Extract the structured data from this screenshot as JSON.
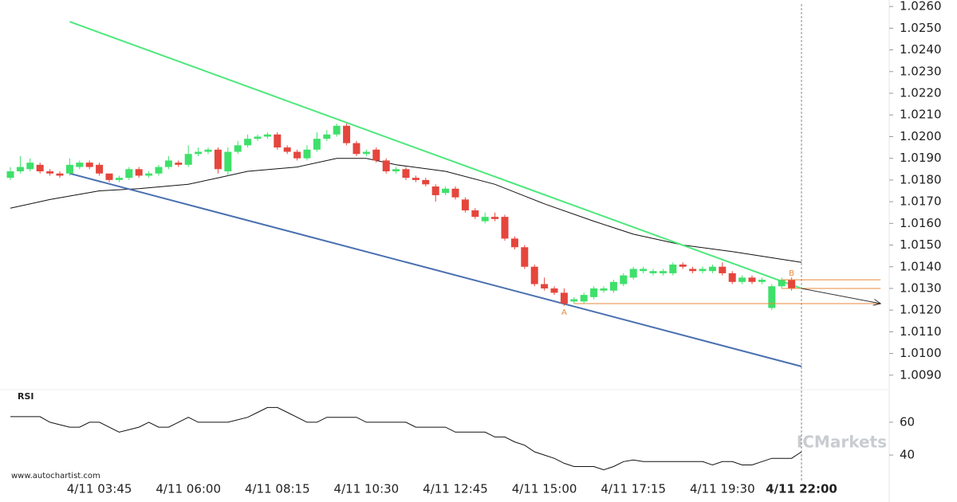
{
  "chart_data": {
    "type": "candlestick",
    "categories": [
      null,
      null,
      null,
      null,
      null,
      null,
      null,
      null,
      null,
      "4/11 03:45",
      null,
      null,
      null,
      null,
      null,
      null,
      null,
      null,
      "4/11 06:00",
      null,
      null,
      null,
      null,
      null,
      null,
      null,
      null,
      "4/11 08:15",
      null,
      null,
      null,
      null,
      null,
      null,
      null,
      null,
      "4/11 10:30",
      null,
      null,
      null,
      null,
      null,
      null,
      null,
      null,
      "4/11 12:45",
      null,
      null,
      null,
      null,
      null,
      null,
      null,
      null,
      "4/11 15:00",
      null,
      null,
      null,
      null,
      null,
      null,
      null,
      null,
      "4/11 17:15",
      null,
      null,
      null,
      null,
      null,
      null,
      null,
      null,
      "4/11 19:30",
      null,
      null,
      null,
      null,
      null,
      null,
      null,
      "4/11 22:00"
    ],
    "open": [
      1.0181,
      1.0184,
      1.0185,
      1.0187,
      1.0184,
      1.0183,
      1.0183,
      1.0186,
      1.0188,
      1.0187,
      1.0183,
      1.018,
      1.0181,
      1.0185,
      1.0182,
      1.0183,
      1.0186,
      1.0188,
      1.0187,
      1.0192,
      1.0193,
      1.0194,
      1.0184,
      1.0193,
      1.0196,
      1.0199,
      1.02,
      1.0201,
      1.0195,
      1.0193,
      1.019,
      1.0194,
      1.0199,
      1.0201,
      1.0205,
      1.0197,
      1.0192,
      1.0194,
      1.0189,
      1.0184,
      1.0185,
      1.0181,
      1.018,
      1.0177,
      1.0174,
      1.0176,
      1.0171,
      1.0166,
      1.0161,
      1.0163,
      1.0163,
      1.0153,
      1.0149,
      1.014,
      1.0132,
      1.013,
      1.0128,
      1.0124,
      1.0124,
      1.0126,
      1.0129,
      1.0129,
      1.0132,
      1.0135,
      1.0138,
      1.0137,
      1.0137,
      1.0137,
      1.0141,
      1.0139,
      1.0138,
      1.0138,
      1.014,
      1.0137,
      1.0133,
      1.0135,
      1.0133,
      1.0121,
      1.0131,
      1.0134,
      null
    ],
    "high": [
      1.0186,
      1.0191,
      1.019,
      1.0188,
      1.0185,
      1.0184,
      1.019,
      1.0189,
      1.0189,
      1.0188,
      1.0182,
      1.0182,
      1.0186,
      1.0186,
      1.0184,
      1.0187,
      1.0191,
      1.0189,
      1.0196,
      1.0195,
      1.0195,
      1.0195,
      1.0195,
      1.0198,
      1.0201,
      1.0201,
      1.0202,
      1.0202,
      1.0196,
      1.0194,
      1.0196,
      1.0202,
      1.0203,
      1.0206,
      1.0206,
      1.0198,
      1.0194,
      1.0195,
      1.019,
      1.0186,
      1.0186,
      1.0182,
      1.0181,
      1.0178,
      1.0177,
      1.0177,
      1.0172,
      1.0167,
      1.0165,
      1.0165,
      1.0164,
      1.0154,
      1.015,
      1.0141,
      1.0135,
      1.0131,
      1.013,
      1.0126,
      1.0128,
      1.0131,
      1.0131,
      1.0134,
      1.0137,
      1.014,
      1.014,
      1.0139,
      1.0139,
      1.0142,
      1.0142,
      1.014,
      1.014,
      1.0141,
      1.0142,
      1.0138,
      1.0136,
      1.0136,
      1.0135,
      1.0132,
      1.0135,
      1.0135,
      null
    ],
    "low": [
      1.018,
      1.0183,
      1.0184,
      1.0183,
      1.0182,
      1.0181,
      1.0182,
      1.0185,
      1.0185,
      1.0182,
      1.0179,
      1.0179,
      1.018,
      1.0181,
      1.0181,
      1.0182,
      1.0185,
      1.0186,
      1.0186,
      1.0191,
      1.0192,
      1.0183,
      1.0182,
      1.0192,
      1.0195,
      1.0198,
      1.0199,
      1.0194,
      1.0192,
      1.0189,
      1.0189,
      1.0193,
      1.0198,
      1.02,
      1.0196,
      1.0191,
      1.0191,
      1.0188,
      1.0183,
      1.0183,
      1.018,
      1.0179,
      1.0177,
      1.017,
      1.0173,
      1.0171,
      1.0165,
      1.0162,
      1.016,
      1.0161,
      1.0152,
      1.0148,
      1.0139,
      1.0131,
      1.0129,
      1.0127,
      1.0122,
      1.0123,
      1.0123,
      1.0125,
      1.0128,
      1.0128,
      1.0131,
      1.0134,
      1.0137,
      1.0136,
      1.0136,
      1.0136,
      1.0139,
      1.0137,
      1.0137,
      1.0137,
      1.0136,
      1.0132,
      1.0132,
      1.0132,
      1.0132,
      1.012,
      1.013,
      1.0129,
      null
    ],
    "close": [
      1.0184,
      1.0186,
      1.0188,
      1.0184,
      1.0183,
      1.0182,
      1.0187,
      1.0188,
      1.0186,
      1.0183,
      1.018,
      1.0181,
      1.0185,
      1.0182,
      1.0183,
      1.0186,
      1.0189,
      1.0187,
      1.0192,
      1.0193,
      1.0194,
      1.0185,
      1.0193,
      1.0196,
      1.0199,
      1.02,
      1.0201,
      1.0195,
      1.0193,
      1.019,
      1.0194,
      1.0199,
      1.0201,
      1.0205,
      1.0197,
      1.0192,
      1.0193,
      1.0189,
      1.0184,
      1.0185,
      1.0181,
      1.018,
      1.0178,
      1.0173,
      1.0176,
      1.0172,
      1.0166,
      1.0163,
      1.0163,
      1.0162,
      1.0153,
      1.0149,
      1.014,
      1.0132,
      1.013,
      1.0128,
      1.0123,
      1.0125,
      1.0127,
      1.013,
      1.013,
      1.0133,
      1.0136,
      1.0139,
      1.0139,
      1.0138,
      1.0138,
      1.0141,
      1.014,
      1.0138,
      1.0139,
      1.014,
      1.0137,
      1.0133,
      1.0135,
      1.0133,
      1.0134,
      1.0131,
      1.0134,
      1.013,
      null
    ],
    "up_color": "#3ee06a",
    "down_color": "#e5453c",
    "ylim": [
      1.0087,
      1.0263
    ],
    "yticks": [
      {
        "value": 1.026,
        "label": "1.0260"
      },
      {
        "value": 1.025,
        "label": "1.0250"
      },
      {
        "value": 1.024,
        "label": "1.0240"
      },
      {
        "value": 1.023,
        "label": "1.0230"
      },
      {
        "value": 1.022,
        "label": "1.0220"
      },
      {
        "value": 1.021,
        "label": "1.0210"
      },
      {
        "value": 1.02,
        "label": "1.0200"
      },
      {
        "value": 1.019,
        "label": "1.0190"
      },
      {
        "value": 1.018,
        "label": "1.0180"
      },
      {
        "value": 1.017,
        "label": "1.0170"
      },
      {
        "value": 1.016,
        "label": "1.0160"
      },
      {
        "value": 1.015,
        "label": "1.0150"
      },
      {
        "value": 1.014,
        "label": "1.0140"
      },
      {
        "value": 1.013,
        "label": "1.0130"
      },
      {
        "value": 1.012,
        "label": "1.0120"
      },
      {
        "value": 1.011,
        "label": "1.0110"
      },
      {
        "value": 1.01,
        "label": "1.0100"
      },
      {
        "value": 1.009,
        "label": "1.0090"
      }
    ],
    "ma": {
      "color": "#111111",
      "x": [
        0,
        4,
        9,
        13,
        18,
        21,
        24,
        29,
        33,
        36,
        39,
        44,
        49,
        54,
        59,
        63,
        68,
        73,
        80
      ],
      "values": [
        1.0167,
        1.0171,
        1.0175,
        1.0176,
        1.0178,
        1.0181,
        1.0184,
        1.0186,
        1.019,
        1.019,
        1.0187,
        1.0184,
        1.0178,
        1.0169,
        1.0161,
        1.0155,
        1.015,
        1.0147,
        1.0142
      ]
    },
    "trendlines": [
      {
        "color": "#4ee87c",
        "x": [
          6,
          80
        ],
        "values": [
          1.0253,
          1.013
        ]
      },
      {
        "color": "#4a70b0",
        "x": [
          6,
          80
        ],
        "values": [
          1.0183,
          1.0094
        ]
      }
    ],
    "levels": [
      {
        "color": "#e8893d",
        "x": [
          57,
          88
        ],
        "values": [
          1.0123,
          1.0123
        ]
      },
      {
        "color": "#e8893d",
        "x": [
          78,
          88
        ],
        "values": [
          1.0134,
          1.0134
        ]
      },
      {
        "color": "#e8893d",
        "x": [
          78,
          88
        ],
        "values": [
          1.013,
          1.013
        ]
      }
    ],
    "forecast": {
      "color": "#333333",
      "x": [
        80,
        88
      ],
      "values": [
        1.013,
        1.0123
      ]
    },
    "point_labels": [
      {
        "label": "A",
        "x": 56,
        "value": 1.0119
      },
      {
        "label": "B",
        "x": 79,
        "value": 1.0137
      }
    ],
    "rsi": {
      "label": "RSI",
      "color": "#111111",
      "ylim": [
        25,
        75
      ],
      "yticks": [
        60,
        40
      ],
      "x": [
        0,
        3,
        4,
        6,
        7,
        8,
        9,
        11,
        13,
        14,
        15,
        16,
        17,
        18,
        19,
        22,
        24,
        25,
        26,
        27,
        28,
        29,
        30,
        31,
        32,
        35,
        36,
        39,
        40,
        41,
        43,
        44,
        45,
        47,
        48,
        49,
        50,
        51,
        52,
        53,
        54,
        55,
        56,
        57,
        58,
        59,
        60,
        61,
        62,
        63,
        64,
        67,
        69,
        70,
        71,
        72,
        73,
        74,
        75,
        76,
        77,
        78,
        79,
        80
      ],
      "values": [
        63.4,
        63.4,
        60,
        57,
        57,
        60,
        60,
        54,
        57,
        60,
        57,
        57,
        60,
        63,
        60,
        60,
        63,
        66,
        69,
        69,
        66,
        63,
        60,
        60,
        63,
        63,
        60,
        60,
        60,
        57,
        57,
        57,
        54,
        54,
        54,
        51,
        51,
        48,
        46,
        42,
        40,
        38,
        35,
        33,
        33,
        33,
        31,
        33,
        36,
        37,
        36,
        36,
        36,
        36,
        34,
        36,
        36,
        34,
        34,
        36,
        38,
        38,
        38,
        42
      ]
    },
    "watermark": "ICMarkets",
    "source": "www.autochartist.com"
  }
}
